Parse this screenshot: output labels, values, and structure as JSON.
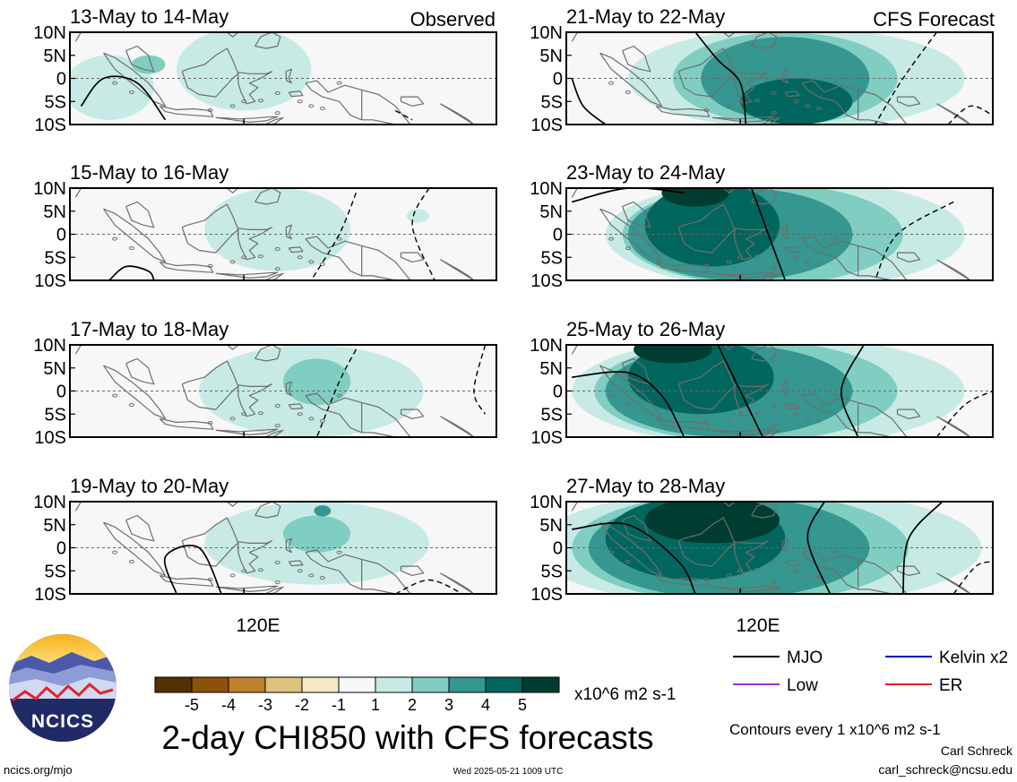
{
  "figure": {
    "title": "2-day CHI850 with CFS forecasts",
    "column_labels": {
      "left": "Observed",
      "right": "CFS Forecast"
    },
    "xaxis_label": "120E",
    "timestamp": "Wed 2025-05-21 1009 UTC",
    "site": "ncics.org/mjo",
    "logo_text": "NCICS",
    "author": "Carl Schreck",
    "email": "carl_schreck@ncsu.edu",
    "contour_note": "Contours every 1 x10^6 m2 s-1"
  },
  "colorbar": {
    "unit": "x10^6 m2 s-1",
    "tick_labels": [
      "-5",
      "-4",
      "-3",
      "-2",
      "-1",
      "1",
      "2",
      "3",
      "4",
      "5"
    ],
    "colors": [
      "#543005",
      "#8c510a",
      "#bf812d",
      "#dfc27d",
      "#f6e8c3",
      "#f7f7f7",
      "#c7eae5",
      "#80cdc1",
      "#35978f",
      "#01665e",
      "#003c30"
    ]
  },
  "legend": [
    {
      "label": "MJO",
      "color": "#000000"
    },
    {
      "label": "Kelvin x2",
      "color": "#0000cc"
    },
    {
      "label": "Low",
      "color": "#9933cc"
    },
    {
      "label": "ER",
      "color": "#dd2222"
    }
  ],
  "chart_data": {
    "type": "heatmap",
    "variable": "2-day CHI850",
    "x_tick_labels": [
      "120E"
    ],
    "y_tick_labels": [
      "10N",
      "5N",
      "0",
      "5S",
      "10S"
    ],
    "panels": [
      {
        "title": "13-May to 14-May",
        "source": "Observed",
        "peak_level": 2,
        "features": [
          {
            "type": "blob",
            "level": 1,
            "lon": 120,
            "lat": 2,
            "rx": 12,
            "ry": 9
          },
          {
            "type": "blob",
            "level": 1,
            "lon": 96,
            "lat": -2,
            "rx": 8,
            "ry": 7
          },
          {
            "type": "blob",
            "level": 2,
            "lon": 103,
            "lat": 3,
            "rx": 3,
            "ry": 2
          }
        ],
        "mjo_contours": [
          {
            "style": "solid",
            "points": [
              [
                91,
                -6
              ],
              [
                95,
                0
              ],
              [
                101,
                -1
              ],
              [
                106,
                -9
              ]
            ]
          }
        ],
        "dashed_contours": [
          {
            "style": "dashed",
            "points": [
              [
                147,
                -7
              ],
              [
                150,
                -9
              ]
            ]
          }
        ]
      },
      {
        "title": "15-May to 16-May",
        "source": "Observed",
        "peak_level": 1,
        "features": [
          {
            "type": "blob",
            "level": 1,
            "lon": 126,
            "lat": 1,
            "rx": 13,
            "ry": 9
          },
          {
            "type": "blob",
            "level": 1,
            "lon": 151,
            "lat": 4,
            "rx": 2,
            "ry": 1.5
          }
        ],
        "mjo_contours": [
          {
            "style": "solid",
            "points": [
              [
                96,
                -10
              ],
              [
                99,
                -7
              ],
              [
                103,
                -8
              ],
              [
                104,
                -10
              ]
            ]
          }
        ],
        "dashed_contours": [
          {
            "style": "dashed",
            "points": [
              [
                140,
                9
              ],
              [
                137,
                0
              ],
              [
                132,
                -10
              ]
            ]
          },
          {
            "style": "dashed",
            "points": [
              [
                153,
                10
              ],
              [
                150,
                2
              ],
              [
                154,
                -10
              ]
            ]
          }
        ]
      },
      {
        "title": "17-May to 18-May",
        "source": "Observed",
        "peak_level": 2,
        "features": [
          {
            "type": "blob",
            "level": 1,
            "lon": 132,
            "lat": 0,
            "rx": 20,
            "ry": 10
          },
          {
            "type": "blob",
            "level": 2,
            "lon": 133,
            "lat": 2,
            "rx": 6,
            "ry": 5
          }
        ],
        "mjo_contours": [],
        "dashed_contours": [
          {
            "style": "dashed",
            "points": [
              [
                140,
                9
              ],
              [
                137,
                2
              ],
              [
                133,
                -10
              ]
            ]
          },
          {
            "style": "dashed",
            "points": [
              [
                163,
                10
              ],
              [
                161,
                0
              ],
              [
                163,
                -5
              ]
            ]
          }
        ]
      },
      {
        "title": "19-May to 20-May",
        "source": "Observed",
        "peak_level": 3,
        "features": [
          {
            "type": "blob",
            "level": 1,
            "lon": 133,
            "lat": 1,
            "rx": 20,
            "ry": 9
          },
          {
            "type": "blob",
            "level": 2,
            "lon": 133,
            "lat": 3,
            "rx": 6,
            "ry": 4
          },
          {
            "type": "blob",
            "level": 3,
            "lon": 134,
            "lat": 8,
            "rx": 1.5,
            "ry": 1.2
          }
        ],
        "mjo_contours": [
          {
            "style": "solid",
            "points": [
              [
                108,
                -10
              ],
              [
                106,
                -2
              ],
              [
                112,
                0
              ],
              [
                116,
                -10
              ]
            ]
          }
        ],
        "dashed_contours": [
          {
            "style": "dashed",
            "points": [
              [
                147,
                -10
              ],
              [
                153,
                -7
              ],
              [
                159,
                -10
              ]
            ]
          }
        ]
      },
      {
        "title": "21-May to 22-May",
        "source": "CFS Forecast",
        "peak_level": 4,
        "features": [
          {
            "type": "blob",
            "level": 1,
            "lon": 130,
            "lat": 0,
            "rx": 30,
            "ry": 11
          },
          {
            "type": "blob",
            "level": 2,
            "lon": 128,
            "lat": 0,
            "rx": 20,
            "ry": 10
          },
          {
            "type": "blob",
            "level": 3,
            "lon": 128,
            "lat": 0,
            "rx": 15,
            "ry": 9
          },
          {
            "type": "blob",
            "level": 4,
            "lon": 130,
            "lat": -5,
            "rx": 10,
            "ry": 5
          }
        ],
        "mjo_contours": [
          {
            "style": "solid",
            "points": [
              [
                112,
                10
              ],
              [
                116,
                4
              ],
              [
                120,
                -1
              ],
              [
                121,
                -10
              ]
            ]
          },
          {
            "style": "solid",
            "points": [
              [
                90,
                0
              ],
              [
                92,
                -6
              ],
              [
                96,
                -10
              ]
            ]
          }
        ],
        "dashed_contours": [
          {
            "style": "dashed",
            "points": [
              [
                155,
                10
              ],
              [
                149,
                0
              ],
              [
                144,
                -10
              ]
            ]
          },
          {
            "style": "dashed",
            "points": [
              [
                157,
                -10
              ],
              [
                161,
                -6
              ],
              [
                165,
                -8
              ]
            ]
          }
        ]
      },
      {
        "title": "23-May to 24-May",
        "source": "CFS Forecast",
        "peak_level": 5,
        "features": [
          {
            "type": "blob",
            "level": 1,
            "lon": 128,
            "lat": 0,
            "rx": 32,
            "ry": 12
          },
          {
            "type": "blob",
            "level": 2,
            "lon": 124,
            "lat": 0,
            "rx": 25,
            "ry": 11
          },
          {
            "type": "blob",
            "level": 3,
            "lon": 120,
            "lat": 0,
            "rx": 20,
            "ry": 10
          },
          {
            "type": "blob",
            "level": 4,
            "lon": 115,
            "lat": 2,
            "rx": 12,
            "ry": 9
          },
          {
            "type": "blob",
            "level": 5,
            "lon": 112,
            "lat": 9,
            "rx": 6,
            "ry": 3
          }
        ],
        "mjo_contours": [
          {
            "style": "solid",
            "points": [
              [
                90,
                7
              ],
              [
                100,
                10
              ],
              [
                110,
                9
              ]
            ]
          },
          {
            "style": "solid",
            "points": [
              [
                122,
                10
              ],
              [
                125,
                0
              ],
              [
                128,
                -10
              ]
            ]
          }
        ],
        "dashed_contours": [
          {
            "style": "dashed",
            "points": [
              [
                158,
                7
              ],
              [
                148,
                0
              ],
              [
                144,
                -10
              ]
            ]
          }
        ]
      },
      {
        "title": "25-May to 26-May",
        "source": "CFS Forecast",
        "peak_level": 5,
        "features": [
          {
            "type": "blob",
            "level": 1,
            "lon": 125,
            "lat": 0,
            "rx": 35,
            "ry": 12
          },
          {
            "type": "blob",
            "level": 2,
            "lon": 121,
            "lat": 0,
            "rx": 27,
            "ry": 11
          },
          {
            "type": "blob",
            "level": 3,
            "lon": 118,
            "lat": 0,
            "rx": 22,
            "ry": 10
          },
          {
            "type": "blob",
            "level": 4,
            "lon": 113,
            "lat": 3,
            "rx": 13,
            "ry": 8
          },
          {
            "type": "blob",
            "level": 5,
            "lon": 108,
            "lat": 9,
            "rx": 7,
            "ry": 3
          }
        ],
        "mjo_contours": [
          {
            "style": "solid",
            "points": [
              [
                90,
                3
              ],
              [
                100,
                4
              ],
              [
                106,
                -1
              ],
              [
                110,
                -10
              ]
            ]
          },
          {
            "style": "solid",
            "points": [
              [
                116,
                10
              ],
              [
                120,
                0
              ],
              [
                124,
                -10
              ]
            ]
          },
          {
            "style": "solid",
            "points": [
              [
                142,
                10
              ],
              [
                138,
                0
              ],
              [
                141,
                -10
              ]
            ]
          }
        ],
        "dashed_contours": [
          {
            "style": "dashed",
            "points": [
              [
                155,
                -10
              ],
              [
                160,
                -3
              ],
              [
                165,
                0
              ]
            ]
          }
        ]
      },
      {
        "title": "27-May to 28-May",
        "source": "CFS Forecast",
        "peak_level": 5,
        "features": [
          {
            "type": "blob",
            "level": 1,
            "lon": 123,
            "lat": 0,
            "rx": 40,
            "ry": 13
          },
          {
            "type": "blob",
            "level": 2,
            "lon": 120,
            "lat": 0,
            "rx": 30,
            "ry": 12
          },
          {
            "type": "blob",
            "level": 3,
            "lon": 118,
            "lat": 0,
            "rx": 25,
            "ry": 11
          },
          {
            "type": "blob",
            "level": 4,
            "lon": 112,
            "lat": 2,
            "rx": 16,
            "ry": 9
          },
          {
            "type": "blob",
            "level": 5,
            "lon": 115,
            "lat": 6,
            "rx": 12,
            "ry": 5
          }
        ],
        "mjo_contours": [
          {
            "style": "solid",
            "points": [
              [
                90,
                4
              ],
              [
                100,
                5
              ],
              [
                109,
                -3
              ],
              [
                112,
                -10
              ]
            ]
          },
          {
            "style": "solid",
            "points": [
              [
                135,
                10
              ],
              [
                132,
                2
              ],
              [
                136,
                -10
              ]
            ]
          },
          {
            "style": "solid",
            "points": [
              [
                156,
                10
              ],
              [
                150,
                2
              ],
              [
                149,
                -10
              ]
            ]
          }
        ],
        "dashed_contours": [
          {
            "style": "dashed",
            "points": [
              [
                158,
                -10
              ],
              [
                162,
                -4
              ],
              [
                165,
                -3
              ]
            ]
          }
        ]
      }
    ]
  }
}
